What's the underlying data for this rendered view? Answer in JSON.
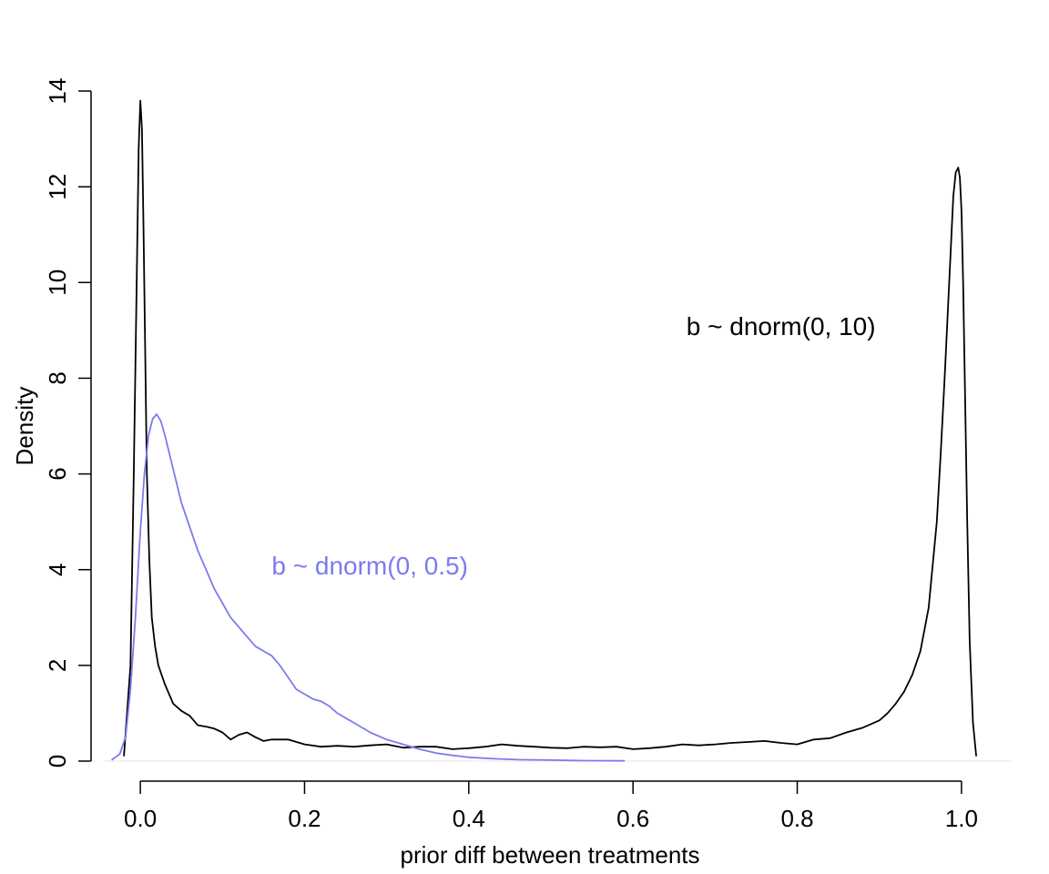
{
  "chart_data": {
    "type": "line",
    "title": "",
    "xlabel": "prior diff between treatments",
    "ylabel": "Density",
    "xlim": [
      -0.06,
      1.06
    ],
    "ylim": [
      0,
      14
    ],
    "grid": false,
    "x_ticks": [
      0.0,
      0.2,
      0.4,
      0.6,
      0.8,
      1.0
    ],
    "x_tick_labels": [
      "0.0",
      "0.2",
      "0.4",
      "0.6",
      "0.8",
      "1.0"
    ],
    "y_ticks": [
      0,
      2,
      4,
      6,
      8,
      10,
      12,
      14
    ],
    "y_tick_labels": [
      "0",
      "2",
      "4",
      "6",
      "8",
      "10",
      "12",
      "14"
    ],
    "baseline_color": "#e6e6e6",
    "series": [
      {
        "name": "b ~ dnorm(0, 10)",
        "color": "#000000",
        "x": [
          -0.02,
          -0.012,
          -0.008,
          -0.004,
          -0.002,
          0.0,
          0.002,
          0.004,
          0.006,
          0.008,
          0.011,
          0.014,
          0.018,
          0.022,
          0.03,
          0.04,
          0.05,
          0.06,
          0.07,
          0.08,
          0.09,
          0.1,
          0.11,
          0.12,
          0.13,
          0.14,
          0.15,
          0.16,
          0.17,
          0.18,
          0.2,
          0.22,
          0.24,
          0.26,
          0.28,
          0.3,
          0.32,
          0.34,
          0.36,
          0.38,
          0.4,
          0.42,
          0.44,
          0.46,
          0.48,
          0.5,
          0.52,
          0.54,
          0.56,
          0.58,
          0.6,
          0.62,
          0.64,
          0.66,
          0.68,
          0.7,
          0.72,
          0.74,
          0.76,
          0.78,
          0.8,
          0.82,
          0.84,
          0.86,
          0.88,
          0.9,
          0.91,
          0.92,
          0.93,
          0.94,
          0.95,
          0.96,
          0.97,
          0.975,
          0.98,
          0.985,
          0.99,
          0.993,
          0.996,
          0.998,
          1.0,
          1.002,
          1.004,
          1.007,
          1.01,
          1.014,
          1.018
        ],
        "y": [
          0.1,
          2.0,
          6.0,
          10.5,
          12.8,
          13.8,
          13.2,
          11.0,
          8.5,
          6.0,
          4.2,
          3.0,
          2.4,
          2.0,
          1.6,
          1.2,
          1.05,
          0.95,
          0.75,
          0.72,
          0.68,
          0.6,
          0.45,
          0.55,
          0.6,
          0.5,
          0.42,
          0.45,
          0.45,
          0.45,
          0.35,
          0.3,
          0.32,
          0.3,
          0.33,
          0.35,
          0.28,
          0.3,
          0.3,
          0.25,
          0.27,
          0.3,
          0.35,
          0.32,
          0.3,
          0.28,
          0.27,
          0.3,
          0.29,
          0.3,
          0.25,
          0.27,
          0.3,
          0.35,
          0.33,
          0.35,
          0.38,
          0.4,
          0.42,
          0.38,
          0.35,
          0.45,
          0.48,
          0.6,
          0.7,
          0.85,
          1.0,
          1.2,
          1.45,
          1.8,
          2.3,
          3.2,
          5.0,
          6.5,
          8.2,
          10.0,
          11.8,
          12.3,
          12.4,
          12.2,
          11.5,
          10.0,
          8.0,
          5.0,
          2.5,
          0.8,
          0.1
        ]
      },
      {
        "name": "b ~ dnorm(0, 0.5)",
        "color": "#7b7bef",
        "x": [
          -0.035,
          -0.025,
          -0.018,
          -0.012,
          -0.006,
          0.0,
          0.005,
          0.01,
          0.015,
          0.02,
          0.025,
          0.03,
          0.04,
          0.05,
          0.06,
          0.07,
          0.08,
          0.09,
          0.1,
          0.11,
          0.12,
          0.13,
          0.14,
          0.15,
          0.16,
          0.17,
          0.18,
          0.19,
          0.2,
          0.21,
          0.22,
          0.23,
          0.24,
          0.26,
          0.28,
          0.3,
          0.32,
          0.34,
          0.36,
          0.38,
          0.4,
          0.43,
          0.46,
          0.5,
          0.54,
          0.59
        ],
        "y": [
          0.02,
          0.15,
          0.5,
          1.5,
          3.0,
          4.8,
          6.0,
          6.8,
          7.15,
          7.25,
          7.1,
          6.8,
          6.1,
          5.4,
          4.9,
          4.4,
          4.0,
          3.6,
          3.3,
          3.0,
          2.8,
          2.6,
          2.4,
          2.3,
          2.2,
          2.0,
          1.75,
          1.5,
          1.4,
          1.3,
          1.25,
          1.15,
          1.0,
          0.8,
          0.6,
          0.45,
          0.35,
          0.25,
          0.17,
          0.12,
          0.08,
          0.05,
          0.03,
          0.02,
          0.01,
          0.005
        ]
      }
    ],
    "annotations": [
      {
        "text": "b ~ dnorm(0, 10)",
        "x": 0.665,
        "y": 8.9,
        "color": "#000000"
      },
      {
        "text": "b ~ dnorm(0, 0.5)",
        "x": 0.16,
        "y": 3.9,
        "color": "#7b7bef"
      }
    ]
  }
}
